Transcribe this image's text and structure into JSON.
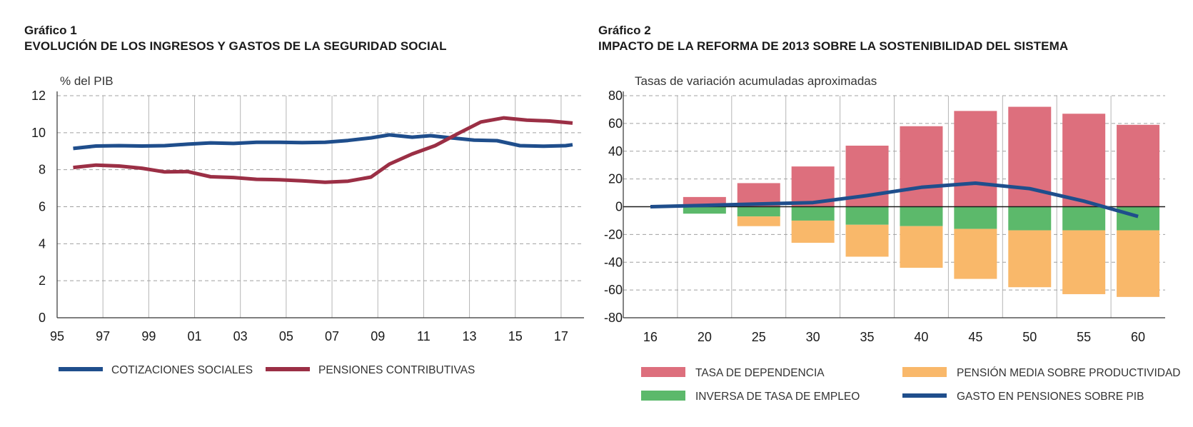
{
  "panel1": {
    "label": "Gráfico 1",
    "title": "EVOLUCIÓN DE LOS INGRESOS Y GASTOS DE LA SEGURIDAD SOCIAL"
  },
  "panel2": {
    "label": "Gráfico 2",
    "title": "IMPACTO DE LA REFORMA DE 2013 SOBRE LA SOSTENIBILIDAD DEL SISTEMA"
  },
  "colors": {
    "cotizaciones": "#1f4e8c",
    "pensiones": "#9b2f45",
    "dependencia": "#dd6f7d",
    "empleo": "#5cb96b",
    "productividad": "#f9b86a",
    "gasto": "#1f4e8c",
    "grid": "#a0a0a0"
  },
  "chart_data": [
    {
      "type": "line",
      "title": "EVOLUCIÓN DE LOS INGRESOS Y GASTOS DE LA SEGURIDAD SOCIAL",
      "ylabel": "% del PIB",
      "xlabel": "",
      "ylim": [
        0,
        12
      ],
      "xlim": [
        95,
        18
      ],
      "yticks": [
        "0",
        "2",
        "4",
        "6",
        "8",
        "10",
        "12"
      ],
      "xticks": [
        "95",
        "97",
        "99",
        "01",
        "03",
        "05",
        "07",
        "09",
        "11",
        "13",
        "15",
        "17"
      ],
      "grid": true,
      "legend_position": "bottom",
      "series": [
        {
          "name": "COTIZACIONES SOCIALES",
          "x": [
            1995.7,
            1996.7,
            1997.7,
            1998.7,
            1999.7,
            2000.7,
            2001.7,
            2002.7,
            2003.7,
            2004.7,
            2005.7,
            2006.7,
            2007.7,
            2008.7,
            2009.5,
            2010.5,
            2011.3,
            2012.2,
            2013.2,
            2014.2,
            2015.2,
            2016.2,
            2017.2,
            2017.5
          ],
          "values": [
            9.15,
            9.28,
            9.3,
            9.28,
            9.3,
            9.38,
            9.45,
            9.42,
            9.48,
            9.48,
            9.46,
            9.48,
            9.58,
            9.72,
            9.88,
            9.76,
            9.84,
            9.72,
            9.6,
            9.57,
            9.3,
            9.27,
            9.3,
            9.35
          ]
        },
        {
          "name": "PENSIONES CONTRIBUTIVAS",
          "x": [
            1995.7,
            1996.7,
            1997.7,
            1998.7,
            1999.7,
            2000.7,
            2001.7,
            2002.7,
            2003.7,
            2004.7,
            2005.7,
            2006.7,
            2007.7,
            2008.7,
            2009.5,
            2010.5,
            2011.5,
            2012.5,
            2013.5,
            2014.5,
            2015.5,
            2016.5,
            2017.5
          ],
          "values": [
            8.12,
            8.25,
            8.2,
            8.08,
            7.88,
            7.9,
            7.62,
            7.58,
            7.48,
            7.46,
            7.4,
            7.32,
            7.38,
            7.6,
            8.3,
            8.85,
            9.3,
            9.95,
            10.58,
            10.8,
            10.68,
            10.63,
            10.52
          ]
        }
      ]
    },
    {
      "type": "bar",
      "stacked": true,
      "title": "IMPACTO DE LA REFORMA DE 2013 SOBRE LA SOSTENIBILIDAD DEL SISTEMA",
      "ylabel": "Tasas de variación acumuladas aproximadas",
      "xlabel": "",
      "ylim": [
        -80,
        80
      ],
      "yticks": [
        "80",
        "60",
        "40",
        "20",
        "0",
        "-20",
        "-40",
        "-60",
        "-80"
      ],
      "categories": [
        "16",
        "20",
        "25",
        "30",
        "35",
        "40",
        "45",
        "50",
        "55",
        "60"
      ],
      "grid": true,
      "legend_position": "bottom",
      "series": [
        {
          "name": "TASA DE DEPENDENCIA",
          "kind": "bar",
          "values": [
            0,
            7,
            17,
            29,
            44,
            58,
            69,
            72,
            67,
            59
          ]
        },
        {
          "name": "INVERSA DE TASA DE EMPLEO",
          "kind": "bar",
          "values": [
            0,
            -5,
            -7,
            -10,
            -13,
            -14,
            -16,
            -17,
            -17,
            -17
          ]
        },
        {
          "name": "PENSIÓN MEDIA SOBRE PRODUCTIVIDAD",
          "kind": "bar",
          "values": [
            0,
            0,
            -7,
            -16,
            -23,
            -30,
            -36,
            -41,
            -46,
            -48
          ]
        },
        {
          "name": "GASTO EN PENSIONES SOBRE PIB",
          "kind": "line",
          "values": [
            0,
            1,
            2,
            3,
            8,
            14,
            17,
            13,
            4,
            -7
          ]
        }
      ]
    }
  ]
}
